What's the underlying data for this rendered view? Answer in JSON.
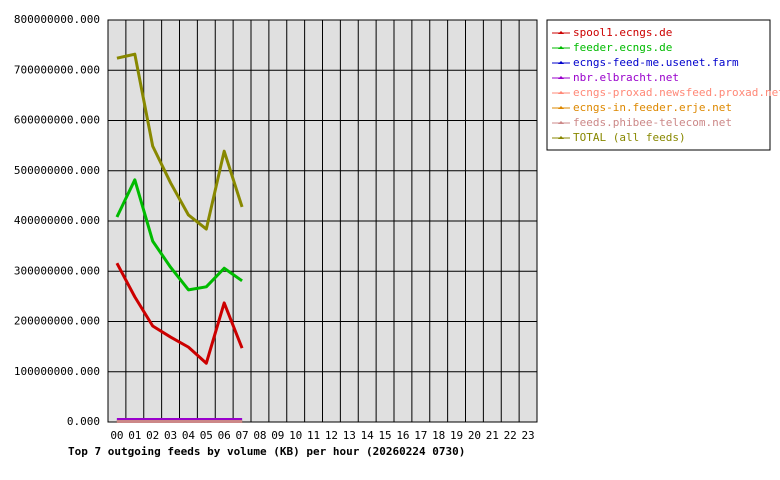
{
  "chart_data": {
    "type": "line",
    "title": "Top 7 outgoing feeds by volume (KB) per hour (20260224 0730)",
    "categories": [
      "00",
      "01",
      "02",
      "03",
      "04",
      "05",
      "06",
      "07",
      "08",
      "09",
      "10",
      "11",
      "12",
      "13",
      "14",
      "15",
      "16",
      "17",
      "18",
      "19",
      "20",
      "21",
      "22",
      "23"
    ],
    "ylim": [
      0,
      800000000
    ],
    "yticks": [
      {
        "value": 0,
        "label": "0.000"
      },
      {
        "value": 100000000,
        "label": "100000000.000"
      },
      {
        "value": 200000000,
        "label": "200000000.000"
      },
      {
        "value": 300000000,
        "label": "300000000.000"
      },
      {
        "value": 400000000,
        "label": "400000000.000"
      },
      {
        "value": 500000000,
        "label": "500000000.000"
      },
      {
        "value": 600000000,
        "label": "600000000.000"
      },
      {
        "value": 700000000,
        "label": "700000000.000"
      },
      {
        "value": 800000000,
        "label": "800000000.000"
      }
    ],
    "grid": true,
    "legend": "right",
    "series": [
      {
        "name": "spool1.ecngs.de",
        "color": "#cc0000",
        "values": [
          316000000,
          249000000,
          191000000,
          169000000,
          149000000,
          117000000,
          237000000,
          147000000,
          null,
          null,
          null,
          null,
          null,
          null,
          null,
          null,
          null,
          null,
          null,
          null,
          null,
          null,
          null,
          null
        ]
      },
      {
        "name": "feeder.ecngs.de",
        "color": "#00bb00",
        "values": [
          408000000,
          482000000,
          360000000,
          308000000,
          263000000,
          269000000,
          306000000,
          281000000,
          null,
          null,
          null,
          null,
          null,
          null,
          null,
          null,
          null,
          null,
          null,
          null,
          null,
          null,
          null,
          null
        ]
      },
      {
        "name": "ecngs-feed-me.usenet.farm",
        "color": "#0000cc",
        "values": [
          5000000,
          5000000,
          5000000,
          5000000,
          5000000,
          5000000,
          5000000,
          5000000,
          null,
          null,
          null,
          null,
          null,
          null,
          null,
          null,
          null,
          null,
          null,
          null,
          null,
          null,
          null,
          null
        ]
      },
      {
        "name": "nbr.elbracht.net",
        "color": "#9900cc",
        "values": [
          5000000,
          5000000,
          5000000,
          5000000,
          5000000,
          5000000,
          5000000,
          5000000,
          null,
          null,
          null,
          null,
          null,
          null,
          null,
          null,
          null,
          null,
          null,
          null,
          null,
          null,
          null,
          null
        ]
      },
      {
        "name": "ecngs-proxad.newsfeed.proxad.net",
        "color": "#ff8877",
        "values": [
          1000000,
          1000000,
          1000000,
          1000000,
          1000000,
          1000000,
          1000000,
          1000000,
          null,
          null,
          null,
          null,
          null,
          null,
          null,
          null,
          null,
          null,
          null,
          null,
          null,
          null,
          null,
          null
        ]
      },
      {
        "name": "ecngs-in.feeder.erje.net",
        "color": "#dd8800",
        "values": [
          1000000,
          1000000,
          1000000,
          1000000,
          1000000,
          1000000,
          1000000,
          1000000,
          null,
          null,
          null,
          null,
          null,
          null,
          null,
          null,
          null,
          null,
          null,
          null,
          null,
          null,
          null,
          null
        ]
      },
      {
        "name": "feeds.phibee-telecom.net",
        "color": "#cc8888",
        "values": [
          1000000,
          1000000,
          1000000,
          1000000,
          1000000,
          1000000,
          1000000,
          1000000,
          null,
          null,
          null,
          null,
          null,
          null,
          null,
          null,
          null,
          null,
          null,
          null,
          null,
          null,
          null,
          null
        ]
      },
      {
        "name": "TOTAL (all feeds)",
        "color": "#888800",
        "values": [
          724000000,
          732000000,
          549000000,
          476000000,
          412000000,
          384000000,
          539000000,
          428000000,
          null,
          null,
          null,
          null,
          null,
          null,
          null,
          null,
          null,
          null,
          null,
          null,
          null,
          null,
          null,
          null
        ]
      }
    ]
  }
}
